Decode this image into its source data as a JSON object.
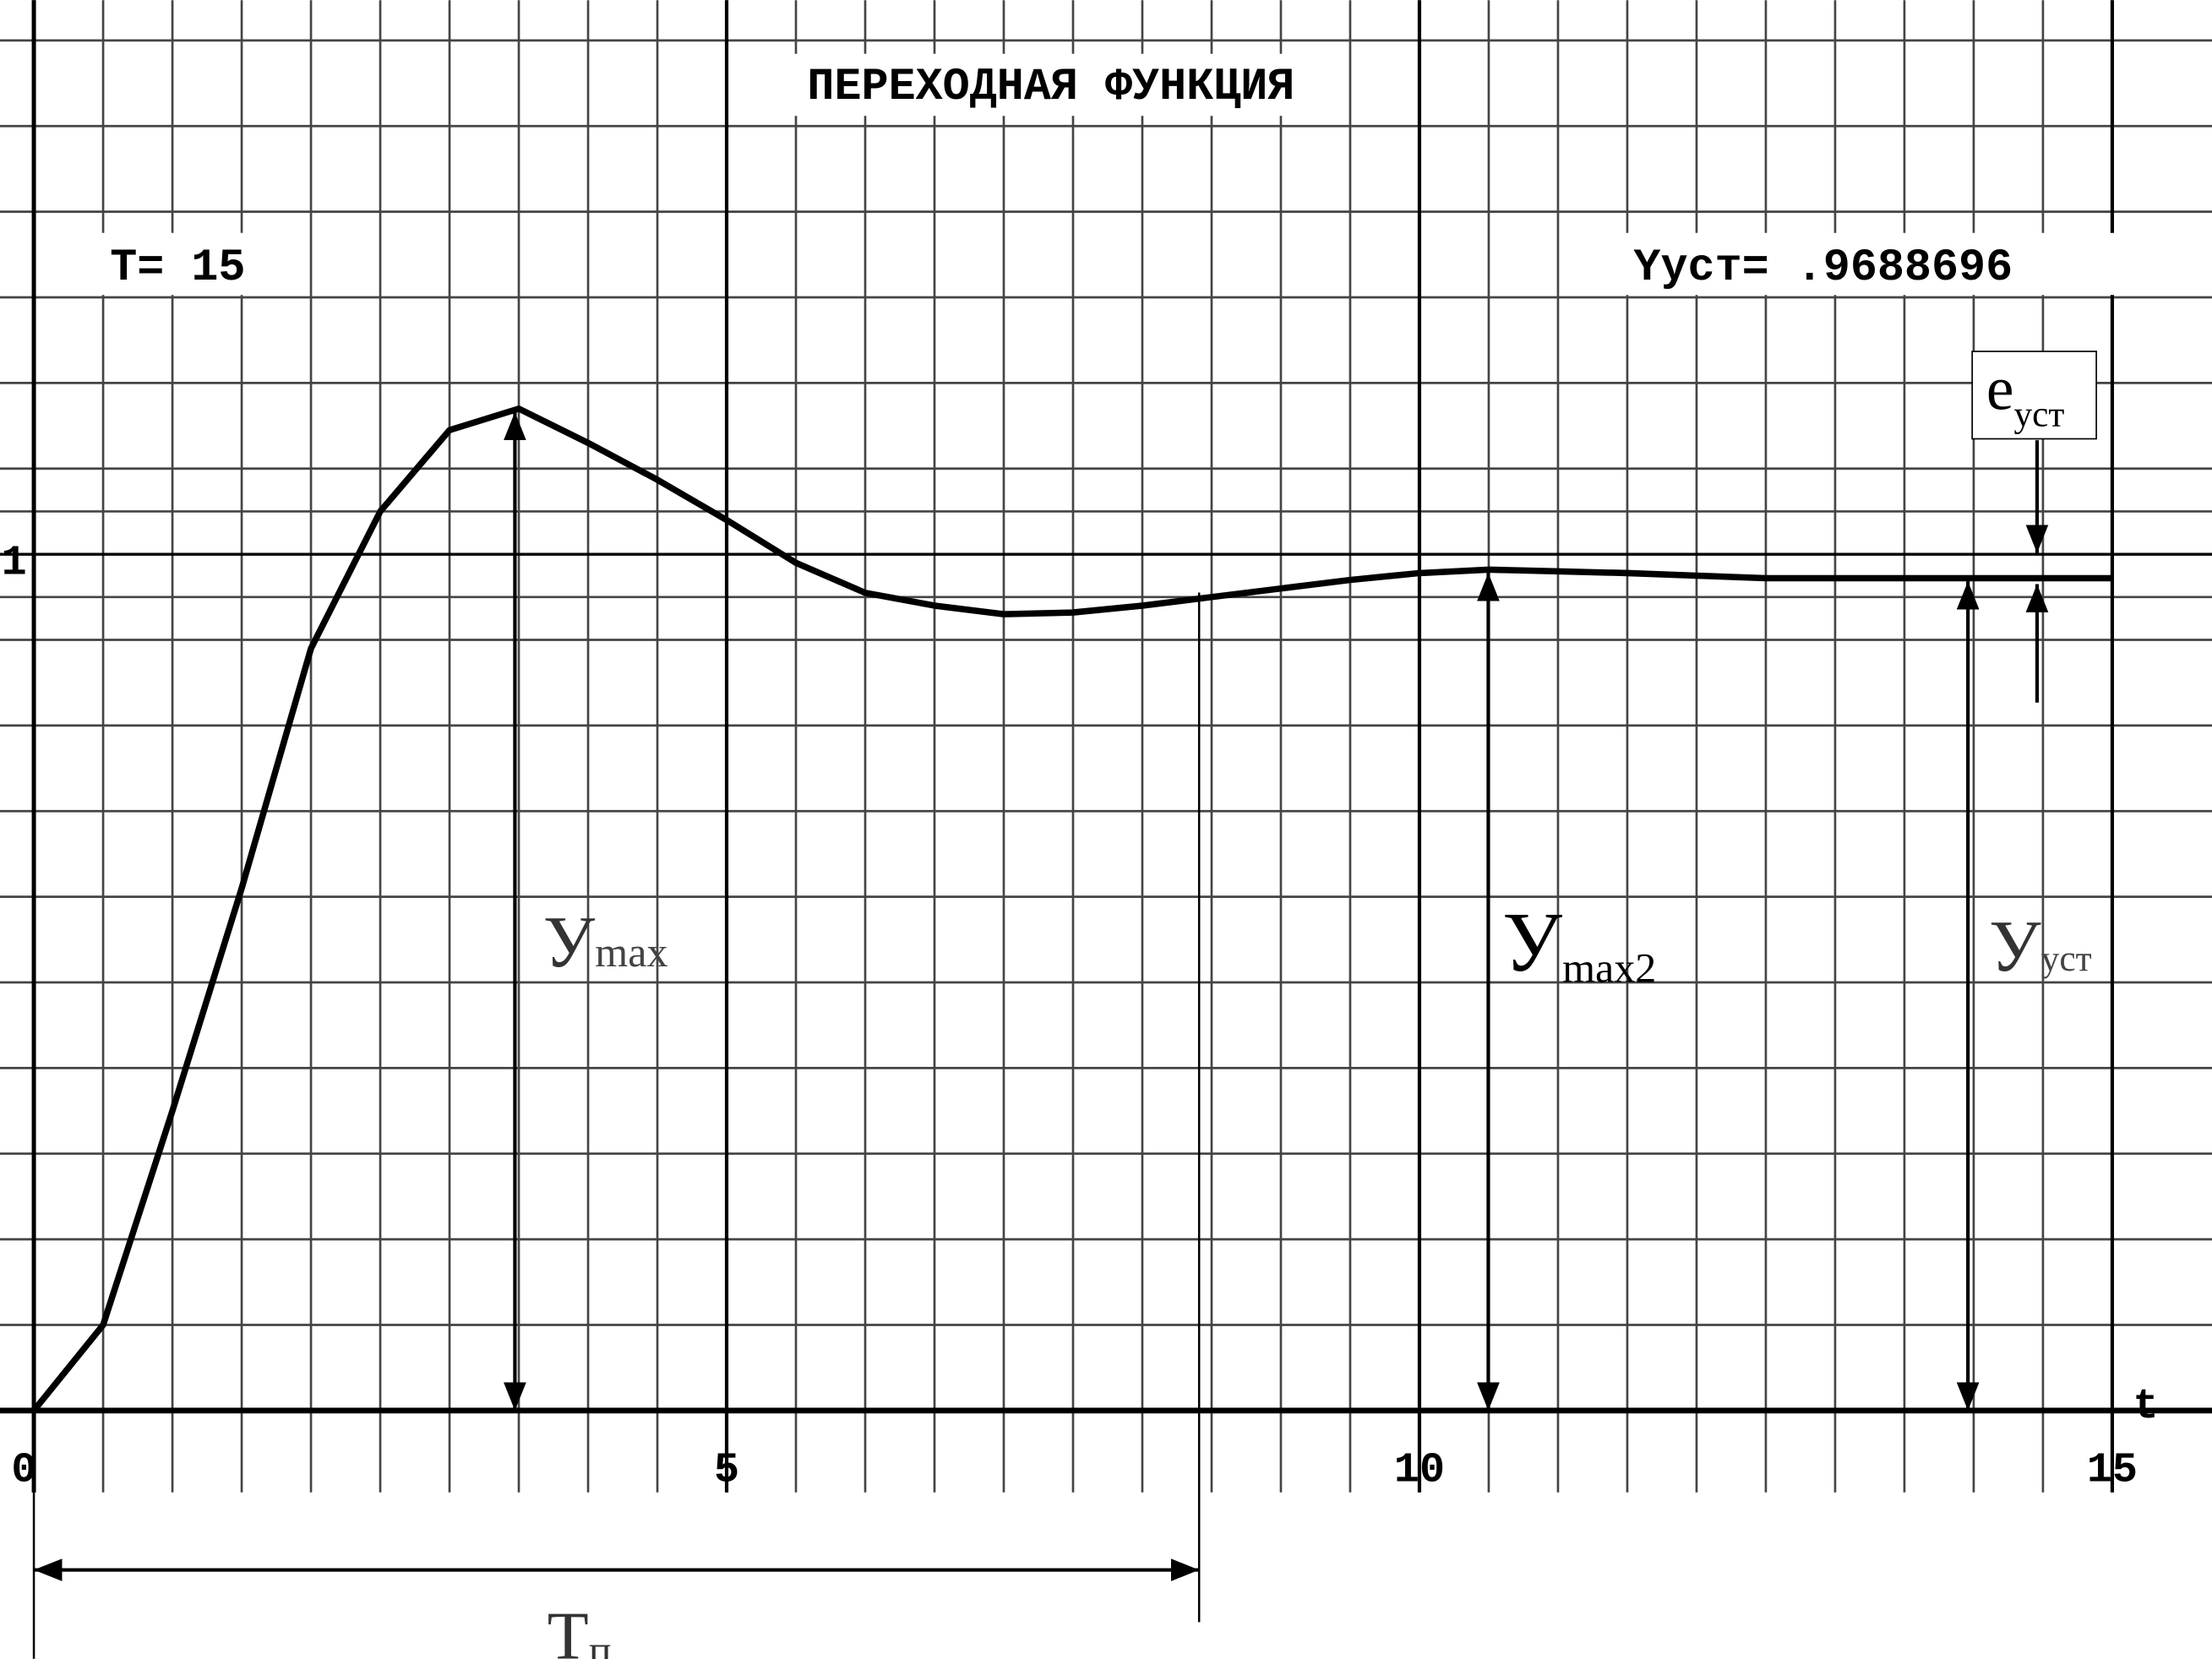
{
  "chart_data": {
    "type": "line",
    "title": "ПЕРЕХОДНАЯ ФУНКЦИЯ",
    "annotations": {
      "period": "T= 15",
      "steady": "Yуст= .9688696",
      "e_steady": {
        "main": "e",
        "sub": "уст"
      },
      "y_max": {
        "main": "У",
        "sub": "max"
      },
      "y_max2": {
        "main": "У",
        "sub": "max2"
      },
      "y_steady": {
        "main": "У",
        "sub": "уст"
      },
      "t_settle": {
        "main": "T",
        "sub": "п"
      }
    },
    "x_label": "t",
    "x": [
      0,
      0.5,
      1,
      1.5,
      2,
      2.5,
      3,
      3.5,
      4,
      4.5,
      5,
      5.5,
      6,
      6.5,
      7,
      7.5,
      8,
      8.5,
      9,
      9.5,
      10,
      10.5,
      11,
      11.5,
      12,
      12.5,
      13,
      13.5,
      14,
      14.5,
      15
    ],
    "values": [
      0,
      0.1,
      0.35,
      0.61,
      0.89,
      1.05,
      1.145,
      1.17,
      1.13,
      1.087,
      1.04,
      0.99,
      0.955,
      0.94,
      0.93,
      0.932,
      0.94,
      0.95,
      0.96,
      0.97,
      0.978,
      0.982,
      0.98,
      0.978,
      0.975,
      0.972,
      0.972,
      0.972,
      0.972,
      0.972,
      0.972
    ],
    "color": "#000000",
    "xlim": [
      0,
      15.72
    ],
    "ylim": [
      0,
      1.647
    ],
    "xticks": [
      0,
      5,
      10,
      15
    ],
    "yticks": [
      1
    ],
    "xgrid": [
      0.5,
      1,
      1.5,
      2,
      2.5,
      3,
      3.5,
      4,
      4.5,
      5,
      5.5,
      6,
      6.5,
      7,
      7.5,
      8,
      8.5,
      9,
      9.5,
      10,
      10.5,
      11,
      11.5,
      12,
      12.5,
      13,
      13.5,
      14,
      14.5,
      15
    ],
    "ygrid": [
      0.1,
      0.2,
      0.3,
      0.4,
      0.5,
      0.6,
      0.7,
      0.8,
      0.9,
      0.95,
      1,
      1.05,
      1.1,
      1.2,
      1.3,
      1.4,
      1.5,
      1.6
    ],
    "grid": true
  }
}
